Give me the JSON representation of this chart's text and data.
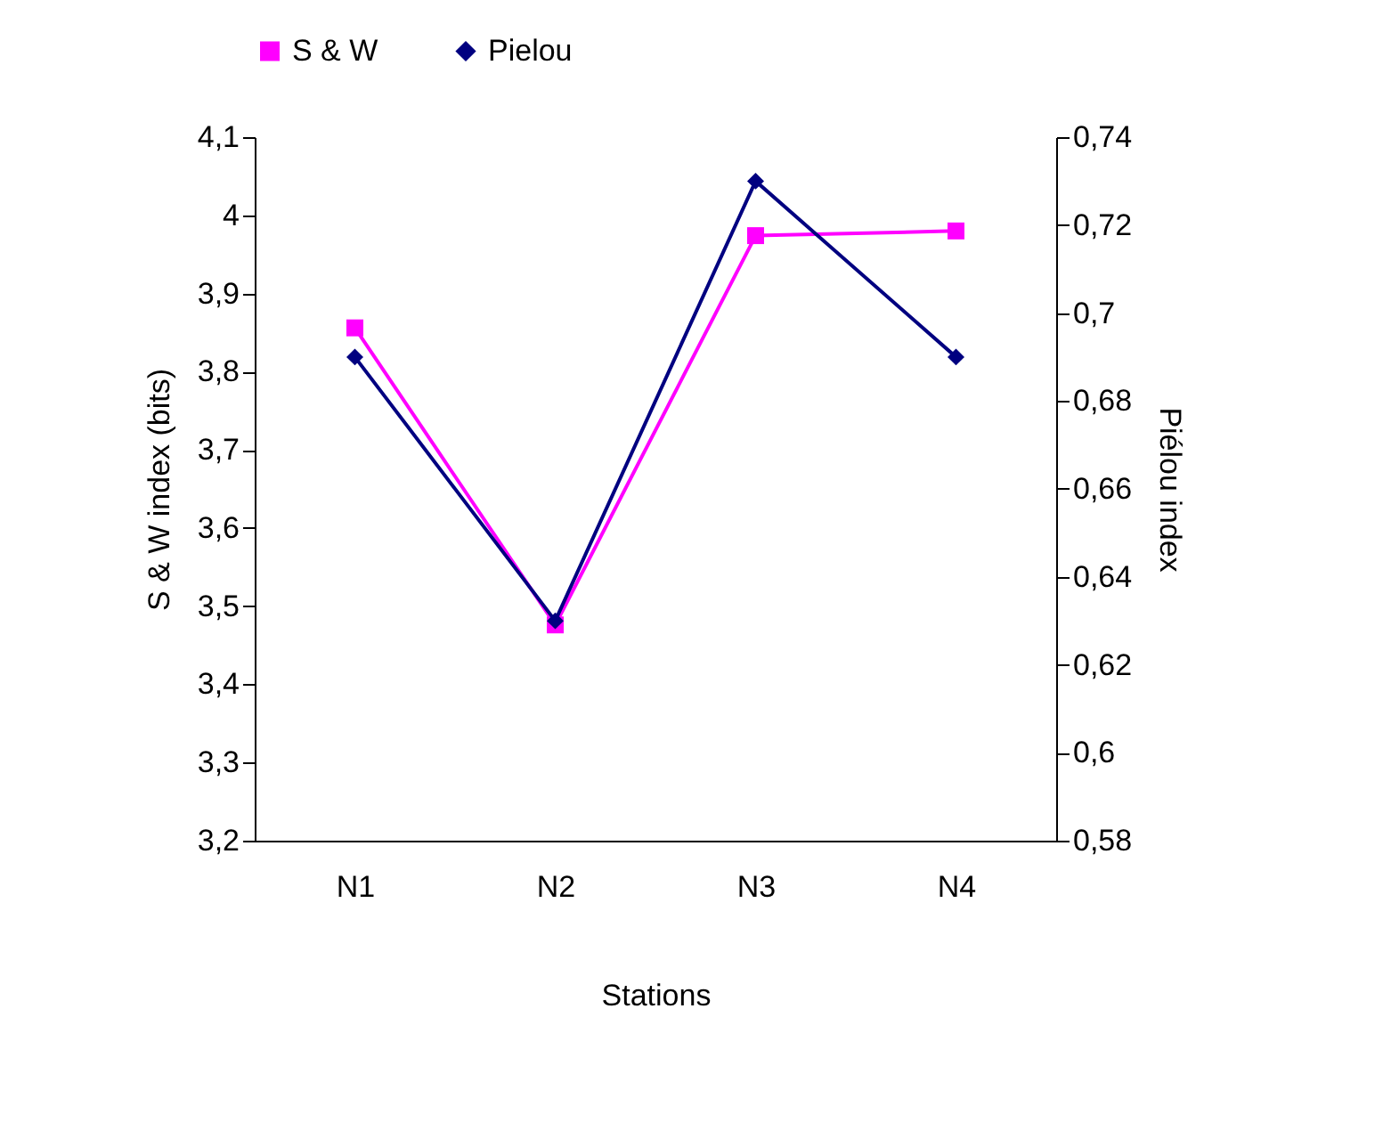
{
  "chart_data": {
    "type": "line",
    "xlabel": "Stations",
    "ylabel": "S & W index (bits)",
    "y2label": "Piélou index",
    "categories": [
      "N1",
      "N2",
      "N3",
      "N4"
    ],
    "series": [
      {
        "name": "S & W",
        "color": "#ff00ff",
        "values": [
          3.856,
          3.476,
          3.974,
          3.98
        ],
        "marker": "square"
      },
      {
        "name": "Pielou",
        "color": "#000080",
        "values": [
          0.69,
          0.63,
          0.73,
          0.69
        ],
        "axis": "y2",
        "marker": "diamond"
      }
    ],
    "ylim": [
      3.2,
      4.1
    ],
    "yticks": [
      {
        "value": 3.2,
        "label": "3,2"
      },
      {
        "value": 3.3,
        "label": "3,3"
      },
      {
        "value": 3.4,
        "label": "3,4"
      },
      {
        "value": 3.5,
        "label": "3,5"
      },
      {
        "value": 3.6,
        "label": "3,6"
      },
      {
        "value": 3.7,
        "label": "3,7"
      },
      {
        "value": 3.8,
        "label": "3,8"
      },
      {
        "value": 3.9,
        "label": "3,9"
      },
      {
        "value": 4,
        "label": "4"
      },
      {
        "value": 4.1,
        "label": "4,1"
      }
    ],
    "y2lim": [
      0.58,
      0.74
    ],
    "y2ticks": [
      {
        "value": 0.58,
        "label": "0,58"
      },
      {
        "value": 0.6,
        "label": "0,6"
      },
      {
        "value": 0.62,
        "label": "0,62"
      },
      {
        "value": 0.64,
        "label": "0,64"
      },
      {
        "value": 0.66,
        "label": "0,66"
      },
      {
        "value": 0.68,
        "label": "0,68"
      },
      {
        "value": 0.7,
        "label": "0,7"
      },
      {
        "value": 0.72,
        "label": "0,72"
      },
      {
        "value": 0.74,
        "label": "0,74"
      }
    ],
    "grid": false,
    "legend": "top",
    "line_style": "solid"
  }
}
